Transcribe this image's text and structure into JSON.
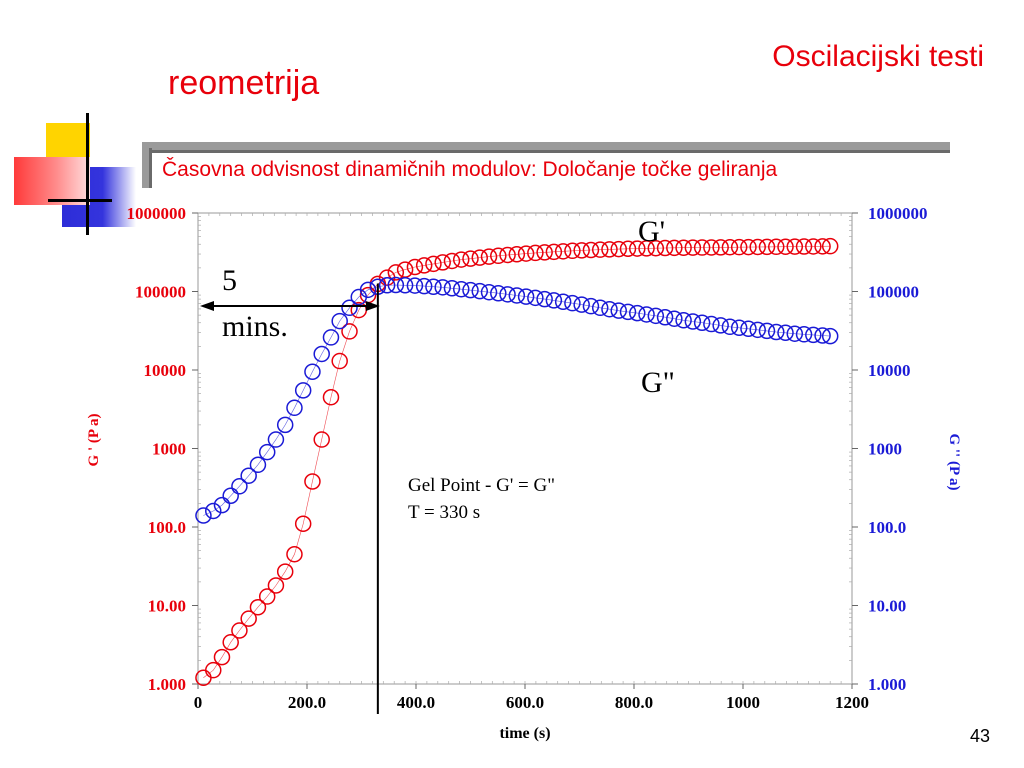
{
  "slide": {
    "title_right": "Oscilacijski testi",
    "title_left": "reometrija",
    "subtitle": "Časovna odvisnost dinamičnih modulov: Določanje točke geliranja",
    "slide_number": "43"
  },
  "colors": {
    "g_prime": "#e8000b",
    "g_double_prime": "#1a1ad6",
    "accent": "#e8000b"
  },
  "chart_data": {
    "type": "scatter",
    "xlabel": "time (s)",
    "ylabel_left": "G ' (P a)",
    "ylabel_right": "G '' (P a)",
    "x_ticks": [
      "0",
      "200.0",
      "400.0",
      "600.0",
      "800.0",
      "1000",
      "1200"
    ],
    "y_ticks_left": [
      "1.000",
      "10.00",
      "100.0",
      "1000",
      "10000",
      "100000",
      "1000000"
    ],
    "y_ticks_right": [
      "1.000",
      "10.00",
      "100.0",
      "1000",
      "10000",
      "100000",
      "1000000"
    ],
    "xlim": [
      0,
      1200
    ],
    "ylim": [
      1,
      1000000
    ],
    "y_scale": "log",
    "series_labels": {
      "g_prime": "G'",
      "g_double_prime": "G\""
    },
    "annotations": {
      "five_minutes": "5\nmins.",
      "gel_point_line1": "Gel Point - G' = G\"",
      "gel_point_line2": "T = 330 s"
    },
    "gel_time": 330,
    "five_minutes_at": 330,
    "series": [
      {
        "name": "G'",
        "x": [
          10,
          28,
          44,
          60,
          76,
          93,
          110,
          127,
          143,
          160,
          177,
          193,
          210,
          227,
          244,
          260,
          278,
          295,
          312,
          330,
          347,
          363,
          380,
          398,
          415,
          432,
          449,
          466,
          483,
          500,
          517,
          534,
          551,
          568,
          585,
          602,
          619,
          636,
          653,
          670,
          687,
          704,
          721,
          738,
          755,
          772,
          789,
          806,
          823,
          840,
          857,
          874,
          891,
          908,
          925,
          942,
          959,
          976,
          993,
          1010,
          1027,
          1044,
          1061,
          1078,
          1095,
          1112,
          1129,
          1146,
          1160
        ],
        "y": [
          1.2,
          1.5,
          2.2,
          3.4,
          4.8,
          6.8,
          9.5,
          13,
          18,
          27,
          45,
          110,
          380,
          1300,
          4500,
          13000,
          31000,
          58000,
          90000,
          125000,
          150000,
          175000,
          190000,
          205000,
          215000,
          225000,
          235000,
          245000,
          255000,
          262000,
          270000,
          278000,
          285000,
          292000,
          298000,
          304000,
          310000,
          315000,
          320000,
          325000,
          330000,
          334000,
          338000,
          341000,
          344000,
          347000,
          350000,
          352000,
          354000,
          356000,
          358000,
          360000,
          361000,
          362000,
          363000,
          364000,
          365000,
          366000,
          367000,
          368000,
          369000,
          370000,
          371000,
          372000,
          373000,
          374000,
          375000,
          376000,
          378000
        ]
      },
      {
        "name": "G\"",
        "x": [
          10,
          28,
          44,
          60,
          76,
          93,
          110,
          127,
          143,
          160,
          177,
          193,
          210,
          227,
          244,
          260,
          278,
          295,
          312,
          330,
          347,
          363,
          380,
          398,
          415,
          432,
          449,
          466,
          483,
          500,
          517,
          534,
          551,
          568,
          585,
          602,
          619,
          636,
          653,
          670,
          687,
          704,
          721,
          738,
          755,
          772,
          789,
          806,
          823,
          840,
          857,
          874,
          891,
          908,
          925,
          942,
          959,
          976,
          993,
          1010,
          1027,
          1044,
          1061,
          1078,
          1095,
          1112,
          1129,
          1146,
          1160
        ],
        "y": [
          140,
          160,
          190,
          250,
          330,
          450,
          620,
          900,
          1300,
          2000,
          3300,
          5500,
          9500,
          16000,
          26000,
          42000,
          62000,
          85000,
          105000,
          115000,
          120000,
          121000,
          120000,
          119000,
          117000,
          115000,
          113000,
          110000,
          107000,
          104000,
          101000,
          98000,
          95000,
          92000,
          89000,
          86000,
          83000,
          80000,
          77000,
          74000,
          71000,
          68000,
          65000,
          62000,
          59500,
          57000,
          55000,
          53000,
          51000,
          49000,
          47000,
          45000,
          43000,
          41500,
          40000,
          38500,
          37000,
          35500,
          34500,
          33500,
          32500,
          31500,
          30500,
          29800,
          29000,
          28500,
          28000,
          27500,
          27000
        ]
      }
    ]
  }
}
